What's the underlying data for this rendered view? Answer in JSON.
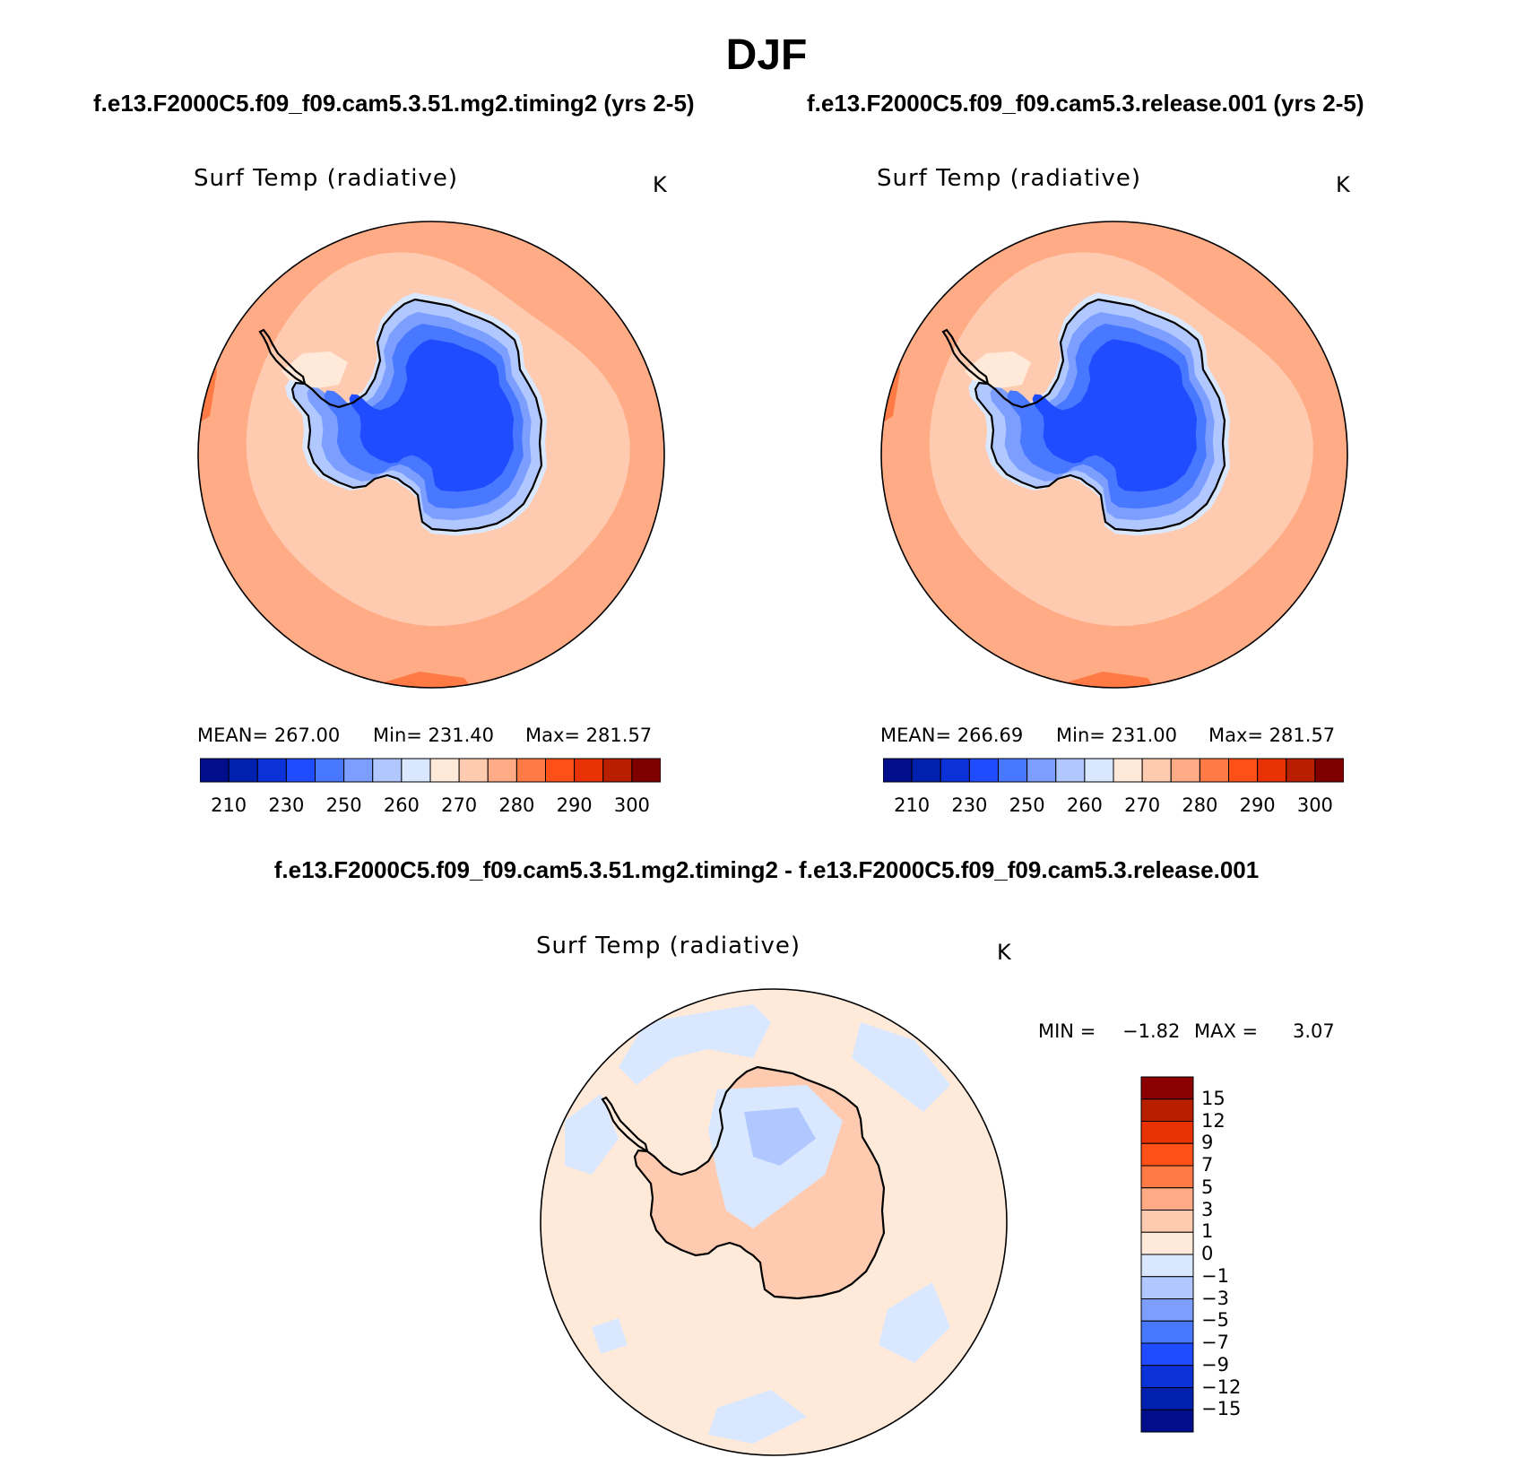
{
  "title": "DJF",
  "panels": [
    {
      "case_title": "f.e13.F2000C5.f09_f09.cam5.3.51.mg2.timing2 (yrs 2-5)",
      "variable": "Surf Temp (radiative)",
      "units": "K",
      "stats": {
        "mean": "MEAN= 267.00",
        "min": "Min= 231.40",
        "max": "Max= 281.57"
      }
    },
    {
      "case_title": "f.e13.F2000C5.f09_f09.cam5.3.release.001 (yrs 2-5)",
      "variable": "Surf Temp (radiative)",
      "units": "K",
      "stats": {
        "mean": "MEAN= 266.69",
        "min": "Min= 231.00",
        "max": "Max= 281.57"
      }
    }
  ],
  "colorbar": {
    "labels": [
      "210",
      "230",
      "250",
      "260",
      "270",
      "280",
      "290",
      "300"
    ],
    "colors": [
      "#000e8c",
      "#0020b0",
      "#0a32d8",
      "#1f4cff",
      "#4878ff",
      "#7c9eff",
      "#b0c8ff",
      "#dae8ff",
      "#ffeada",
      "#ffcbb0",
      "#ffab85",
      "#ff7a45",
      "#ff5018",
      "#e83205",
      "#b81f00",
      "#800000"
    ]
  },
  "difference": {
    "title": "f.e13.F2000C5.f09_f09.cam5.3.51.mg2.timing2 - f.e13.F2000C5.f09_f09.cam5.3.release.001",
    "variable": "Surf Temp (radiative)",
    "units": "K",
    "min_label": "MIN =",
    "min_value": "−1.82",
    "max_label": "MAX =",
    "max_value": "3.07",
    "colorbar_labels": [
      "15",
      "12",
      "9",
      "7",
      "5",
      "3",
      "1",
      "0",
      "−1",
      "−3",
      "−5",
      "−7",
      "−9",
      "−12",
      "−15"
    ],
    "colorbar_colors": [
      "#8b0000",
      "#b81f00",
      "#e83205",
      "#ff5018",
      "#ff7a45",
      "#ffab85",
      "#ffcbb0",
      "#ffeada",
      "#dae8ff",
      "#b0c8ff",
      "#7c9eff",
      "#4878ff",
      "#1f4cff",
      "#0a32d8",
      "#0020b0",
      "#000e8c"
    ]
  },
  "map_colors": {
    "ocean_warm": "#ffab85",
    "ocean_mid": "#ffcbb0",
    "ocean_pale": "#ffeada",
    "ocean_hot": "#ff7a45",
    "ice_deep": "#1f4cff",
    "ice_mid": "#4878ff",
    "ice_light": "#7c9eff",
    "ice_pale": "#b0c8ff",
    "ice_edge": "#dae8ff"
  }
}
